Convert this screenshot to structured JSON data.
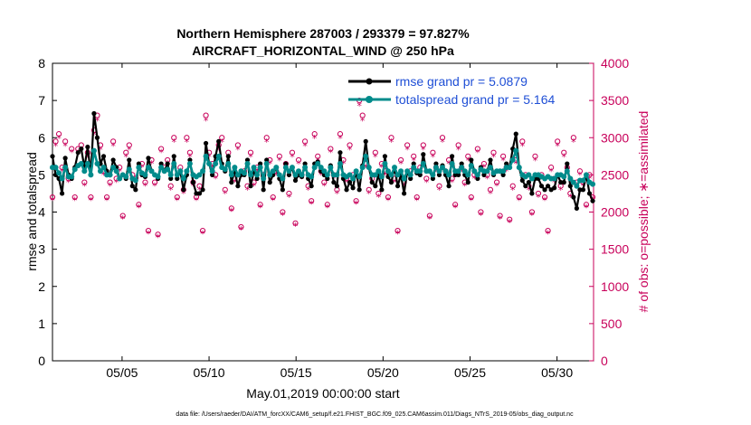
{
  "colors": {
    "rmse": "#000000",
    "spread": "#008b8b",
    "obs": "#c8005a",
    "legend_text": "#1f4fd6",
    "axis": "#000000"
  },
  "chart_data": {
    "type": "line",
    "title_line1": "Northern Hemisphere 287003 / 293379 = 97.827%",
    "title_line2": "AIRCRAFT_HORIZONTAL_WIND @ 250 hPa",
    "xlabel": "May.01,2019 00:00:00 start",
    "ylabel_left": "rmse and totalspread",
    "ylabel_right": "# of obs: o=possible; ∗=assimilated",
    "footnote": "data file: /Users/raeder/DAI/ATM_forcXX/CAM6_setup/f.e21.FHIST_BGC.f09_025.CAM6assim.011/Diags_NTrS_2019-05/obs_diag_output.nc",
    "xlim": [
      1,
      32.1
    ],
    "ylim_left": [
      0,
      8
    ],
    "ylim_right": [
      0,
      4000
    ],
    "x_ticks": [
      5,
      10,
      15,
      20,
      25,
      30
    ],
    "x_tick_labels": [
      "05/05",
      "05/10",
      "05/15",
      "05/20",
      "05/25",
      "05/30"
    ],
    "y_left_ticks": [
      "0",
      "1",
      "2",
      "3",
      "4",
      "5",
      "6",
      "7",
      "8"
    ],
    "y_right_ticks": [
      "0",
      "500",
      "1000",
      "1500",
      "2000",
      "2500",
      "3000",
      "3500",
      "4000"
    ],
    "legend": [
      "rmse grand pr = 5.0879",
      "totalspread grand pr = 5.164"
    ],
    "series": [
      {
        "name": "rmse",
        "values": [
          5.5,
          5.0,
          4.9,
          4.5,
          5.45,
          5.0,
          4.9,
          5.2,
          5.6,
          5.7,
          5.2,
          5.75,
          5.0,
          6.65,
          6.0,
          5.3,
          5.5,
          5.1,
          5.0,
          5.4,
          5.2,
          4.9,
          5.0,
          4.9,
          5.4,
          4.7,
          4.6,
          5.3,
          5.0,
          4.95,
          5.45,
          5.1,
          5.0,
          4.9,
          5.3,
          5.1,
          5.3,
          4.9,
          5.5,
          4.9,
          5.1,
          4.6,
          5.0,
          5.4,
          4.8,
          4.5,
          4.5,
          4.6,
          5.85,
          5.3,
          5.0,
          5.5,
          5.9,
          5.3,
          5.1,
          5.5,
          4.8,
          5.1,
          4.7,
          5.0,
          5.0,
          5.4,
          4.7,
          5.1,
          4.9,
          5.3,
          4.6,
          5.4,
          4.8,
          5.0,
          5.2,
          4.9,
          4.6,
          5.3,
          5.0,
          5.2,
          4.85,
          5.0,
          4.95,
          5.3,
          4.9,
          4.7,
          5.3,
          5.35,
          5.1,
          5.0,
          4.9,
          5.25,
          4.8,
          4.7,
          5.6,
          4.9,
          4.6,
          4.8,
          4.65,
          5.1,
          4.6,
          5.25,
          5.9,
          5.2,
          4.8,
          4.7,
          5.0,
          4.6,
          5.5,
          4.95,
          4.8,
          5.2,
          4.7,
          5.0,
          4.5,
          5.1,
          4.9,
          5.3,
          5.05,
          5.0,
          5.55,
          5.1,
          5.1,
          4.9,
          5.3,
          5.0,
          5.25,
          5.0,
          4.7,
          5.5,
          5.0,
          5.0,
          5.3,
          5.0,
          4.8,
          5.4,
          5.1,
          4.9,
          5.2,
          5.0,
          5.1,
          5.4,
          5.0,
          5.1,
          5.1,
          5.0,
          5.3,
          5.2,
          5.7,
          6.1,
          5.2,
          4.85,
          4.7,
          4.8,
          4.5,
          4.9,
          4.9,
          4.7,
          4.6,
          4.7,
          4.6,
          4.65,
          5.0,
          4.8,
          4.8,
          5.3,
          4.7,
          4.4,
          4.1,
          4.6,
          4.6,
          5.0,
          4.5,
          4.3
        ]
      },
      {
        "name": "totalspread",
        "values": [
          5.2,
          5.2,
          5.05,
          4.9,
          5.2,
          4.95,
          4.95,
          5.15,
          5.25,
          5.3,
          5.1,
          5.3,
          5.0,
          5.65,
          5.3,
          5.1,
          5.2,
          5.0,
          5.0,
          5.2,
          5.1,
          4.9,
          5.0,
          4.95,
          5.15,
          4.9,
          4.85,
          5.2,
          5.05,
          5.0,
          5.2,
          5.1,
          5.0,
          4.95,
          5.2,
          5.1,
          5.15,
          5.0,
          5.3,
          5.0,
          5.1,
          4.9,
          5.1,
          5.3,
          5.0,
          4.95,
          5.0,
          5.1,
          5.5,
          5.3,
          5.1,
          5.3,
          5.5,
          5.2,
          5.15,
          5.3,
          5.0,
          5.2,
          5.0,
          5.1,
          5.05,
          5.3,
          5.0,
          5.2,
          5.0,
          5.2,
          4.9,
          5.3,
          5.0,
          5.1,
          5.2,
          5.0,
          4.9,
          5.2,
          5.1,
          5.2,
          5.0,
          5.1,
          5.0,
          5.2,
          5.0,
          4.95,
          5.2,
          5.3,
          5.2,
          5.1,
          5.0,
          5.2,
          5.0,
          5.0,
          5.3,
          5.0,
          4.95,
          5.0,
          4.9,
          5.1,
          4.95,
          5.2,
          5.5,
          5.2,
          5.0,
          5.0,
          5.1,
          4.95,
          5.3,
          5.1,
          5.0,
          5.2,
          5.0,
          5.1,
          4.9,
          5.1,
          5.0,
          5.2,
          5.1,
          5.1,
          5.3,
          5.1,
          5.1,
          5.0,
          5.2,
          5.1,
          5.2,
          5.1,
          5.0,
          5.3,
          5.1,
          5.1,
          5.2,
          5.1,
          5.0,
          5.25,
          5.1,
          5.0,
          5.15,
          5.1,
          5.1,
          5.2,
          5.05,
          5.1,
          5.1,
          5.1,
          5.2,
          5.2,
          5.4,
          5.65,
          5.2,
          5.0,
          4.95,
          5.0,
          4.9,
          5.0,
          5.0,
          4.95,
          4.9,
          4.95,
          4.9,
          4.9,
          5.0,
          5.0,
          4.95,
          5.1,
          4.9,
          4.8,
          4.7,
          4.85,
          4.85,
          5.0,
          4.8,
          4.75
        ]
      },
      {
        "name": "obs_possible",
        "values": [
          2200,
          2950,
          3050,
          2600,
          2950,
          2450,
          2850,
          2200,
          2850,
          2900,
          2400,
          2800,
          2200,
          3100,
          3300,
          2900,
          2550,
          2200,
          2400,
          2950,
          2450,
          2600,
          1950,
          2800,
          2900,
          2500,
          2450,
          2100,
          2650,
          2400,
          1750,
          2700,
          2400,
          1700,
          2850,
          2600,
          2700,
          2350,
          3000,
          2200,
          2600,
          2300,
          3000,
          2800,
          2400,
          2200,
          2350,
          1750,
          3300,
          2800,
          2650,
          2500,
          2900,
          3000,
          2300,
          2800,
          2050,
          2450,
          2900,
          1800,
          2550,
          2350,
          2800,
          2400,
          2600,
          2100,
          2500,
          3000,
          2700,
          2200,
          2550,
          2750,
          2000,
          2650,
          2250,
          2800,
          1850,
          2700,
          2500,
          2950,
          2350,
          2150,
          3050,
          2750,
          2550,
          2400,
          2100,
          2850,
          2500,
          2300,
          3050,
          2700,
          2450,
          2900,
          2500,
          2150,
          3500,
          3300,
          2650,
          2300,
          2450,
          2800,
          2250,
          2650,
          2550,
          2200,
          3000,
          2450,
          1750,
          2700,
          2400,
          2900,
          2550,
          2750,
          2200,
          2600,
          2900,
          2450,
          1950,
          2800,
          2600,
          2350,
          3000,
          2550,
          2700,
          2450,
          2100,
          2900,
          2600,
          2400,
          2750,
          2200,
          2500,
          2850,
          2000,
          2650,
          2500,
          2300,
          2800,
          2400,
          1950,
          2750,
          2600,
          1900,
          2350,
          2700,
          2200,
          2950,
          2500,
          2350,
          2000,
          2750,
          2250,
          2500,
          2200,
          1750,
          2600,
          2450,
          2950,
          2350,
          2800,
          2600,
          2250,
          3000,
          2400,
          2550,
          2400,
          2100,
          2500,
          2200
        ]
      },
      {
        "name": "obs_assimilated",
        "values": [
          2160,
          2890,
          2990,
          2550,
          2890,
          2400,
          2800,
          2160,
          2800,
          2840,
          2350,
          2740,
          2160,
          3040,
          3230,
          2840,
          2500,
          2160,
          2350,
          2890,
          2400,
          2550,
          1910,
          2740,
          2840,
          2450,
          2400,
          2060,
          2600,
          2350,
          1710,
          2650,
          2350,
          1660,
          2800,
          2550,
          2650,
          2300,
          2940,
          2160,
          2550,
          2250,
          2940,
          2740,
          2350,
          2160,
          2300,
          1710,
          3230,
          2740,
          2600,
          2450,
          2840,
          2940,
          2250,
          2740,
          2010,
          2400,
          2840,
          1760,
          2500,
          2300,
          2740,
          2350,
          2550,
          2060,
          2450,
          2940,
          2650,
          2160,
          2500,
          2690,
          1960,
          2600,
          2200,
          2740,
          1810,
          2650,
          2450,
          2890,
          2300,
          2110,
          2990,
          2690,
          2500,
          2350,
          2060,
          2800,
          2450,
          2250,
          2990,
          2650,
          2400,
          2840,
          2450,
          2110,
          3430,
          3230,
          2600,
          2250,
          2400,
          2740,
          2200,
          2600,
          2500,
          2160,
          2940,
          2400,
          1710,
          2650,
          2350,
          2840,
          2500,
          2690,
          2160,
          2550,
          2840,
          2400,
          1910,
          2740,
          2550,
          2300,
          2940,
          2500,
          2650,
          2400,
          2060,
          2840,
          2550,
          2350,
          2690,
          2160,
          2450,
          2800,
          1960,
          2600,
          2450,
          2250,
          2740,
          2350,
          1910,
          2690,
          2550,
          1860,
          2300,
          2650,
          2160,
          2890,
          2450,
          2300,
          1960,
          2690,
          2200,
          2450,
          2160,
          1710,
          2550,
          2400,
          2890,
          2300,
          2740,
          2550,
          2200,
          2940,
          2350,
          2500,
          2350,
          2060,
          2450,
          2160
        ]
      }
    ]
  }
}
